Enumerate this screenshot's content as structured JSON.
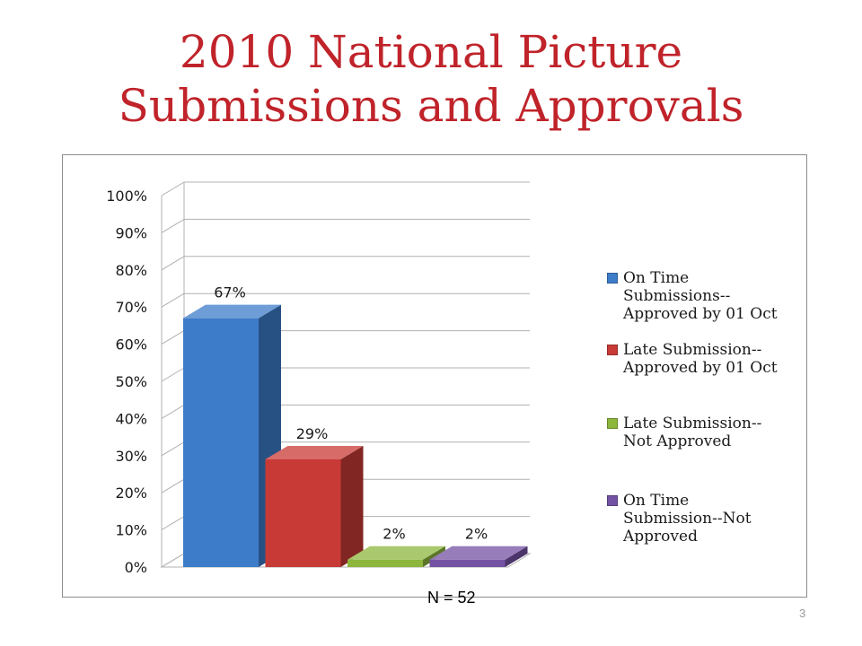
{
  "slide": {
    "title_line1": "2010 National Picture",
    "title_line2": "Submissions and Approvals",
    "n_label": "N = 52",
    "page_number": "3"
  },
  "chart_data": {
    "type": "bar",
    "style": "3d-clustered-column",
    "categories": [
      "On Time Submissions--Approved by 01 Oct",
      "Late Submission--Approved by 01 Oct",
      "Late Submission--Not Approved",
      "On Time Submission--Not Approved"
    ],
    "values": [
      67,
      29,
      2,
      2
    ],
    "data_labels": [
      "67%",
      "29%",
      "2%",
      "2%"
    ],
    "colors": [
      "#3d7cc9",
      "#c83a36",
      "#8db63c",
      "#7452a3"
    ],
    "ylim": [
      0,
      100
    ],
    "yticks": [
      "0%",
      "10%",
      "20%",
      "30%",
      "40%",
      "50%",
      "60%",
      "70%",
      "80%",
      "90%",
      "100%"
    ],
    "grid": true,
    "legend_position": "right",
    "legend": [
      {
        "lines": [
          "On Time",
          "Submissions--",
          "Approved by 01 Oct"
        ]
      },
      {
        "lines": [
          "Late Submission--",
          "Approved by 01 Oct"
        ]
      },
      {
        "lines": [
          "Late Submission--",
          "Not Approved"
        ]
      },
      {
        "lines": [
          "On Time",
          "Submission--Not",
          "Approved"
        ]
      }
    ]
  }
}
